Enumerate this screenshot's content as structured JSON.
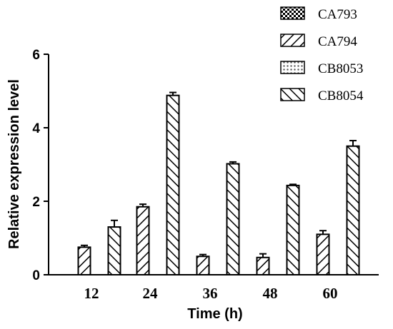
{
  "chart_data": {
    "type": "bar",
    "title": "",
    "xlabel": "Time (h)",
    "ylabel": "Relative expression level",
    "ylim": [
      0,
      6
    ],
    "yticks": [
      0,
      2,
      4,
      6
    ],
    "categories": [
      "12",
      "24",
      "36",
      "48",
      "60"
    ],
    "series": [
      {
        "name": "CA793",
        "pattern": "checker",
        "values": [
          0,
          0,
          0,
          0,
          0
        ],
        "errors": [
          0,
          0,
          0,
          0,
          0
        ]
      },
      {
        "name": "CA794",
        "pattern": "diag-forward",
        "values": [
          0.75,
          1.85,
          0.5,
          0.47,
          1.1
        ],
        "errors": [
          0.05,
          0.07,
          0.05,
          0.1,
          0.1
        ]
      },
      {
        "name": "CB8053",
        "pattern": "dots",
        "values": [
          0,
          0,
          0,
          0,
          0
        ],
        "errors": [
          0,
          0,
          0,
          0,
          0
        ]
      },
      {
        "name": "CB8054",
        "pattern": "diag-back",
        "values": [
          1.3,
          4.88,
          3.02,
          2.43,
          3.5
        ],
        "errors": [
          0.18,
          0.08,
          0.05,
          0.03,
          0.15
        ]
      }
    ],
    "legend_position": "top-right",
    "grid": false
  }
}
